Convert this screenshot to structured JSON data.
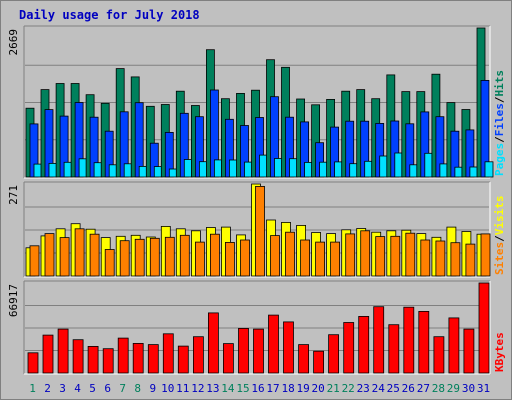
{
  "chart_data": {
    "type": "bar",
    "title": "Daily usage for July 2018",
    "colors": {
      "background": "#C0C0C0",
      "outer": "#C0C0C0",
      "title": "#0000C0",
      "hits": "#00805C",
      "files": "#0040FF",
      "pages": "#00E0FF",
      "visits": "#FFFF00",
      "sites": "#FF8000",
      "kbytes": "#FF0000",
      "weekday_label": "#0000C0",
      "weekend_label": "#00805C"
    },
    "days": [
      "1",
      "2",
      "3",
      "4",
      "5",
      "6",
      "7",
      "8",
      "9",
      "10",
      "11",
      "12",
      "13",
      "14",
      "15",
      "16",
      "17",
      "18",
      "19",
      "20",
      "21",
      "22",
      "23",
      "24",
      "25",
      "26",
      "27",
      "28",
      "29",
      "30",
      "31"
    ],
    "weekend_days": [
      "1",
      "7",
      "8",
      "14",
      "15",
      "21",
      "22",
      "28",
      "29"
    ],
    "panels": [
      {
        "id": "hits-files-pages",
        "ymax_label": "2669",
        "ylim": [
          0,
          2669
        ],
        "legend": [
          "Pages",
          "/",
          "Files",
          "/",
          "Hits"
        ],
        "series": [
          {
            "name": "Hits",
            "values": [
              1232,
              1565,
              1674,
              1674,
              1475,
              1320,
              1942,
              1793,
              1267,
              1298,
              1537,
              1281,
              2281,
              1402,
              1497,
              1555,
              2101,
              1965,
              1397,
              1293,
              1390,
              1537,
              1565,
              1402,
              1828,
              1529,
              1530,
              1842,
              1333,
              1210,
              2669
            ]
          },
          {
            "name": "Files",
            "values": [
              952,
              1207,
              1091,
              1335,
              1071,
              821,
              1168,
              1331,
              606,
              799,
              1141,
              1081,
              1558,
              1033,
              923,
              1065,
              1439,
              1071,
              987,
              615,
              893,
              1000,
              999,
              960,
              1004,
              953,
              1166,
              1081,
              820,
              843,
              1731
            ]
          },
          {
            "name": "Pages",
            "values": [
              231,
              244,
              264,
              326,
              256,
              219,
              237,
              190,
              187,
              143,
              313,
              274,
              306,
              305,
              267,
              392,
              331,
              327,
              261,
              266,
              271,
              239,
              281,
              376,
              430,
              218,
              424,
              235,
              175,
              179,
              273
            ]
          }
        ]
      },
      {
        "id": "visits-sites",
        "ymax_label": "271",
        "ylim": [
          0,
          271
        ],
        "legend": [
          "Sites",
          "/",
          "Visits"
        ],
        "series": [
          {
            "name": "Visits",
            "values": [
              83,
              118,
              139,
              154,
              138,
              113,
              117,
              120,
              115,
              146,
              139,
              133,
              143,
              144,
              121,
              271,
              165,
              158,
              149,
              128,
              125,
              136,
              140,
              129,
              133,
              135,
              125,
              114,
              144,
              131,
              123
            ]
          },
          {
            "name": "Sites",
            "values": [
              89,
              125,
              113,
              139,
              123,
              78,
              104,
              108,
              111,
              114,
              120,
              100,
              123,
              99,
              106,
              264,
              119,
              129,
              106,
              100,
              100,
              124,
              133,
              116,
              117,
              126,
              106,
              103,
              98,
              94,
              124
            ]
          }
        ]
      },
      {
        "id": "kbytes",
        "ymax_label": "66917",
        "ylim": [
          0,
          66917
        ],
        "legend": [
          "KBytes"
        ],
        "series": [
          {
            "name": "KBytes",
            "values": [
              15021,
              28215,
              32624,
              24734,
              19787,
              18091,
              25929,
              21975,
              21138,
              29114,
              19968,
              27002,
              44684,
              21856,
              33165,
              32624,
              43086,
              38000,
              21138,
              16244,
              28474,
              37542,
              42100,
              49316,
              35903,
              48900,
              45820,
              26982,
              41000,
              32624,
              66917
            ]
          }
        ]
      }
    ]
  }
}
